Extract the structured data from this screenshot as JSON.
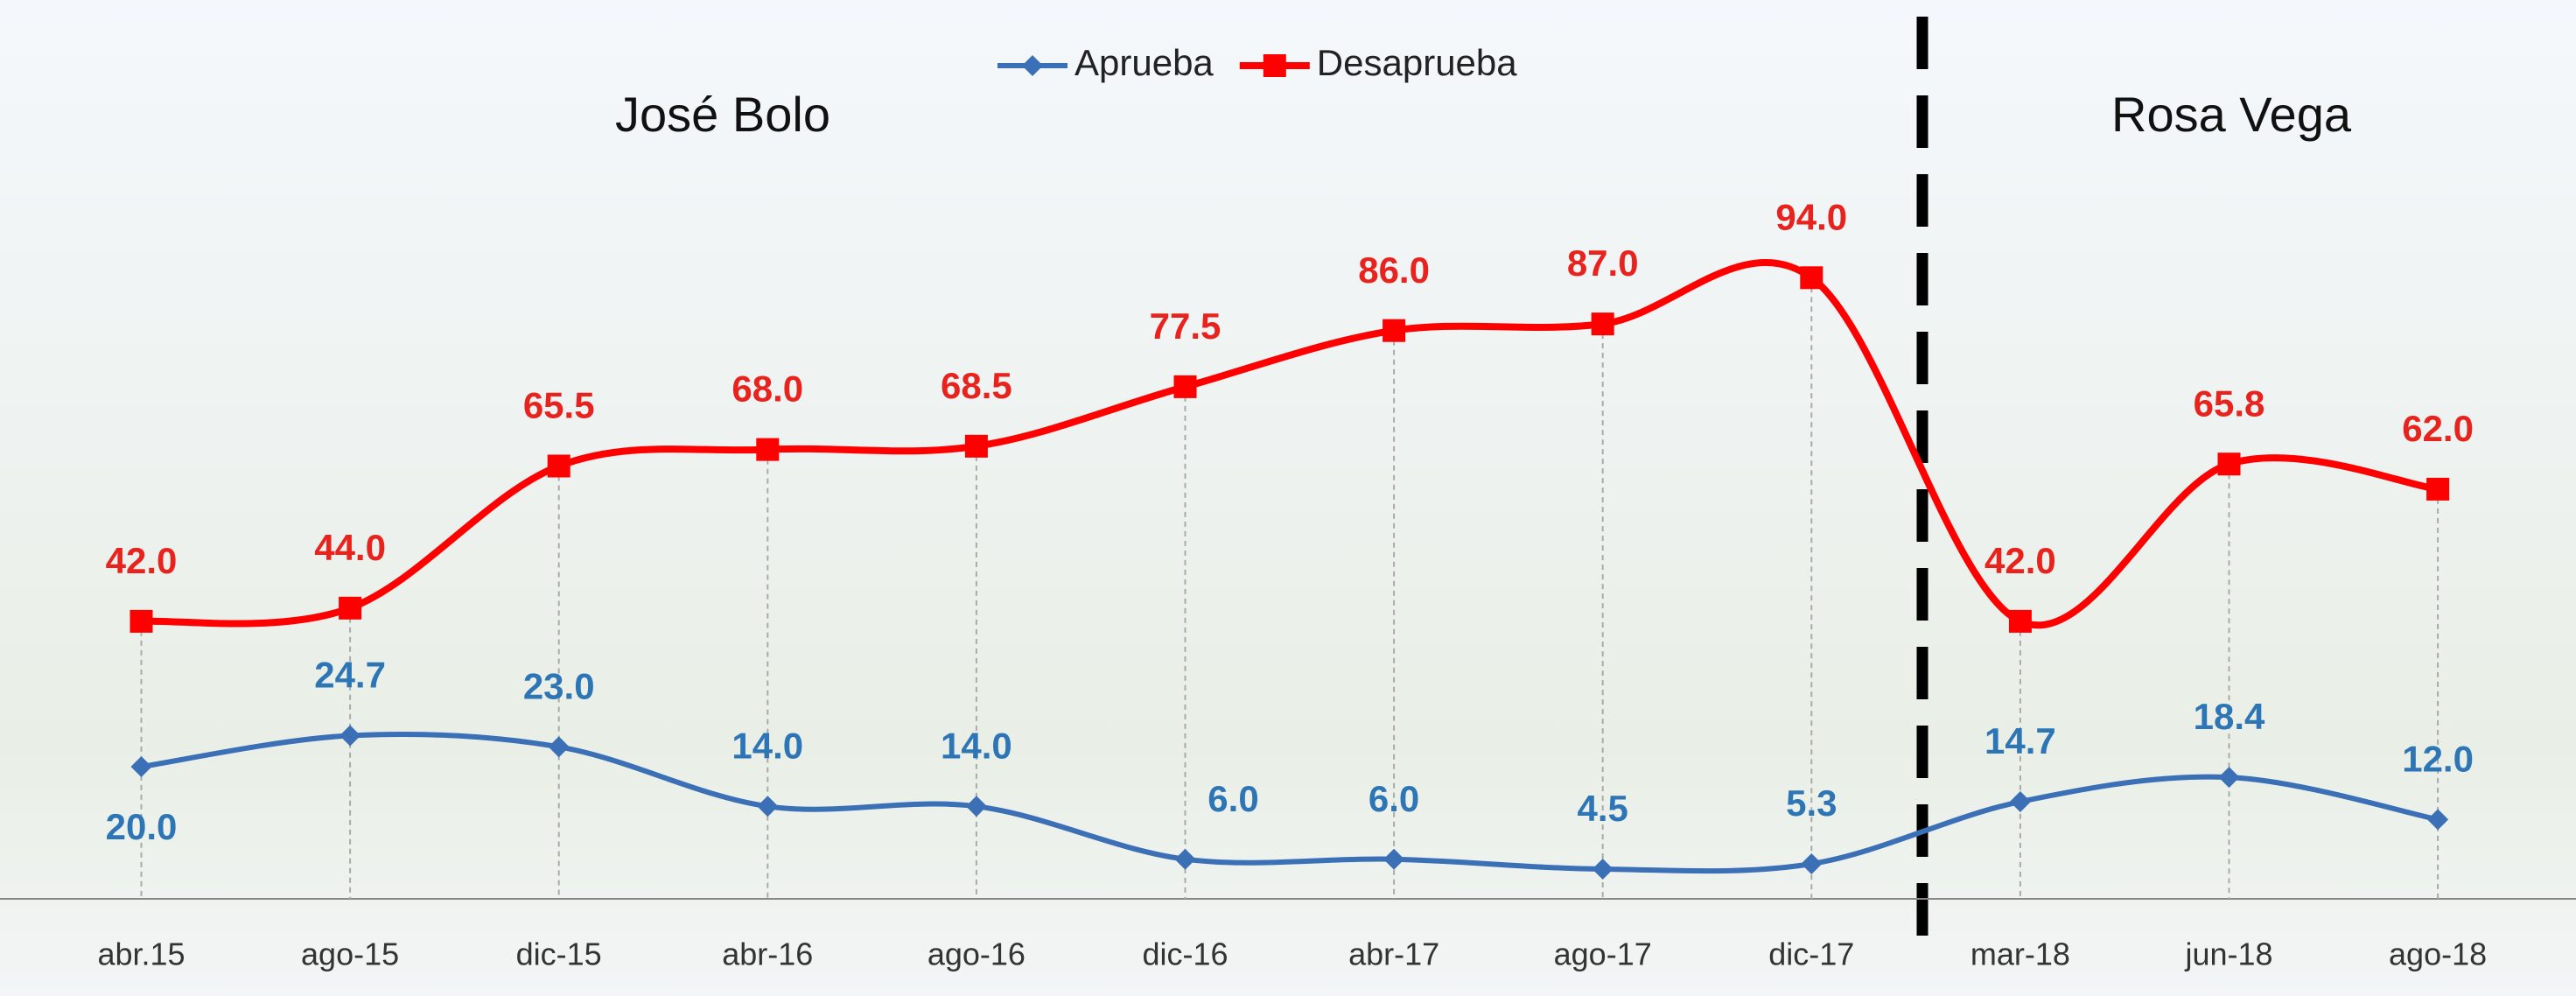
{
  "chart_data": {
    "type": "line",
    "categories": [
      "abr.15",
      "ago-15",
      "dic-15",
      "abr-16",
      "ago-16",
      "dic-16",
      "abr-17",
      "ago-17",
      "dic-17",
      "mar-18",
      "jun-18",
      "ago-18"
    ],
    "series": [
      {
        "name": "Aprueba",
        "color": "#3b6fb6",
        "marker": "diamond",
        "values": [
          20.0,
          24.7,
          23.0,
          14.0,
          14.0,
          6.0,
          6.0,
          4.5,
          5.3,
          14.7,
          18.4,
          12.0
        ],
        "value_labels": [
          "20.0",
          "24.7",
          "23.0",
          "14.0",
          "14.0",
          "6.0",
          "6.0",
          "4.5",
          "5.3",
          "14.7",
          "18.4",
          "12.0"
        ]
      },
      {
        "name": "Desaprueba",
        "color": "#ff0000",
        "marker": "square",
        "values": [
          42.0,
          44.0,
          65.5,
          68.0,
          68.5,
          77.5,
          86.0,
          87.0,
          94.0,
          42.0,
          65.8,
          62.0
        ],
        "value_labels": [
          "42.0",
          "44.0",
          "65.5",
          "68.0",
          "68.5",
          "77.5",
          "86.0",
          "87.0",
          "94.0",
          "42.0",
          "65.8",
          "62.0"
        ]
      }
    ],
    "annotations": [
      "José Bolo",
      "Rosa Vega"
    ],
    "ylim": [
      0,
      100
    ],
    "legend": "top"
  }
}
